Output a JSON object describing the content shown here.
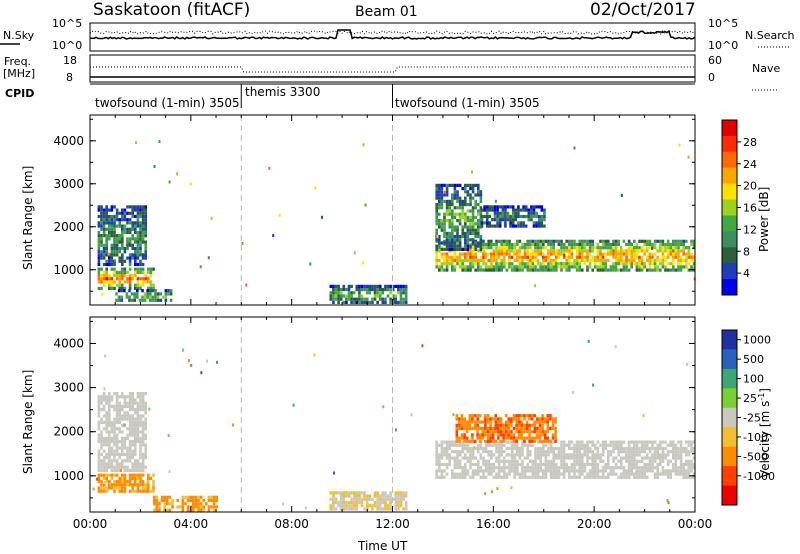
{
  "header": {
    "station": "Saskatoon (fitACF)",
    "beam": "Beam 01",
    "date": "02/Oct/2017"
  },
  "strip_noise": {
    "left_label": "N.Sky",
    "left_ticks": [
      "10^5",
      "10^0"
    ],
    "right_ticks": [
      "10^5",
      "10^0"
    ],
    "right_label": "N.Search"
  },
  "strip_freq": {
    "left_label_1": "Freq.",
    "left_label_2": "[MHz]",
    "left_ticks": [
      "18",
      "8"
    ],
    "right_ticks": [
      "60",
      "0"
    ],
    "right_label": "Nave"
  },
  "cpid": {
    "label": "CPID",
    "segments": [
      {
        "name": "twofsound (1-min) 3505",
        "start": 0.0,
        "end": 6.0
      },
      {
        "name": "themis 3300",
        "start": 6.0,
        "end": 12.0
      },
      {
        "name": "twofsound (1-min) 3505",
        "start": 12.0,
        "end": 24.0
      }
    ]
  },
  "axes": {
    "xlabel": "Time UT",
    "x_ticks": [
      "00:00",
      "04:00",
      "08:00",
      "12:00",
      "16:00",
      "20:00",
      "00:00"
    ],
    "ylabel": "Slant Range [km]",
    "y_ticks": [
      "4000",
      "3000",
      "2000",
      "1000"
    ],
    "xlim": [
      0,
      24
    ],
    "ylim": [
      180,
      4600
    ]
  },
  "colorbars": {
    "power": {
      "label": "Power [dB]",
      "ticks": [
        "28",
        "24",
        "20",
        "16",
        "12",
        "8",
        "4"
      ],
      "colors": [
        "#0000ee",
        "#1a3fb8",
        "#2a5f3a",
        "#3c8f5f",
        "#3fa83f",
        "#9ad21c",
        "#ffe000",
        "#ffa500",
        "#ff6a00",
        "#ff2a00",
        "#e00000"
      ]
    },
    "velocity": {
      "label": "Velocity [m s^-1]",
      "ticks": [
        "1000",
        "500",
        "100",
        "25",
        "-25",
        "-100",
        "-500",
        "-1000"
      ],
      "colors": [
        "#2030a0",
        "#2a60c0",
        "#3aa870",
        "#7ad030",
        "#c8c8c0",
        "#f0c030",
        "#ff8c00",
        "#ff4000",
        "#ee0000"
      ]
    }
  },
  "chart_data": [
    {
      "type": "heatmap",
      "title": "Power",
      "xlabel": "Time UT",
      "ylabel": "Slant Range [km]",
      "xlim": [
        0,
        24
      ],
      "ylim": [
        180,
        4600
      ],
      "value_unit": "dB",
      "vlim": [
        0,
        30
      ],
      "regions": [
        {
          "t0": 0.3,
          "t1": 2.5,
          "r0": 600,
          "r1": 1050,
          "power": 24
        },
        {
          "t0": 0.3,
          "t1": 2.2,
          "r0": 1100,
          "r1": 2500,
          "power": 10
        },
        {
          "t0": 1.0,
          "t1": 3.2,
          "r0": 300,
          "r1": 550,
          "power": 14
        },
        {
          "t0": 9.5,
          "t1": 12.5,
          "r0": 250,
          "r1": 650,
          "power": 12
        },
        {
          "t0": 13.7,
          "t1": 24.0,
          "r0": 1000,
          "r1": 1700,
          "power": 22
        },
        {
          "t0": 13.7,
          "t1": 15.5,
          "r0": 1500,
          "r1": 3000,
          "power": 12
        },
        {
          "t0": 15.5,
          "t1": 18.0,
          "r0": 2000,
          "r1": 2500,
          "power": 8
        }
      ]
    },
    {
      "type": "heatmap",
      "title": "Velocity",
      "xlabel": "Time UT",
      "ylabel": "Slant Range [km]",
      "xlim": [
        0,
        24
      ],
      "ylim": [
        180,
        4600
      ],
      "value_unit": "m s^-1",
      "vlim": [
        -1000,
        1000
      ],
      "regions": [
        {
          "t0": 0.3,
          "t1": 2.5,
          "r0": 650,
          "r1": 1050,
          "velocity": -400
        },
        {
          "t0": 0.3,
          "t1": 2.2,
          "r0": 1100,
          "r1": 2900,
          "velocity": 0
        },
        {
          "t0": 2.5,
          "t1": 5.0,
          "r0": 250,
          "r1": 550,
          "velocity": -400
        },
        {
          "t0": 9.5,
          "t1": 12.5,
          "r0": 250,
          "r1": 650,
          "velocity": -80
        },
        {
          "t0": 13.7,
          "t1": 24.0,
          "r0": 1000,
          "r1": 1800,
          "velocity": 0
        },
        {
          "t0": 14.5,
          "t1": 18.5,
          "r0": 1800,
          "r1": 2400,
          "velocity": -500
        }
      ]
    }
  ]
}
